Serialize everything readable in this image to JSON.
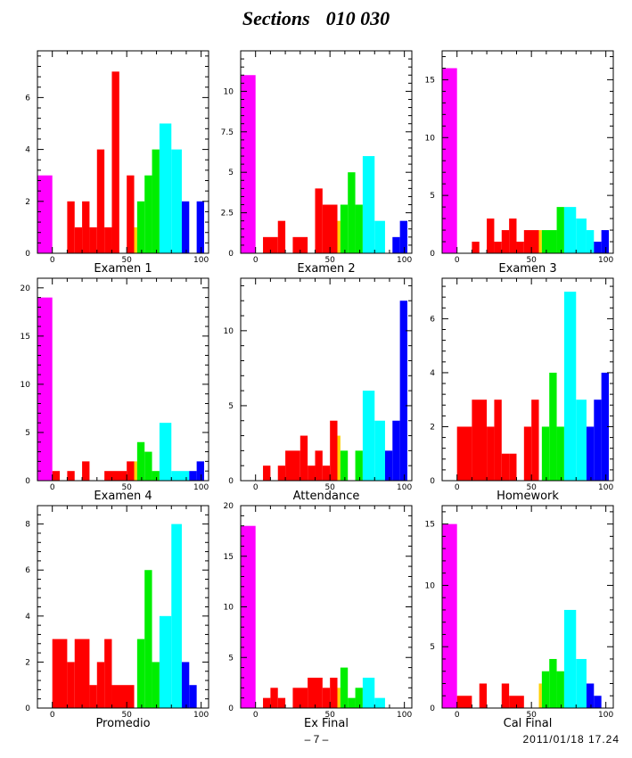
{
  "page": {
    "title_a": "Sections",
    "title_b": "010 030",
    "page_number": "– 7 –",
    "timestamp": "2011/01/18   17.24"
  },
  "colors": {
    "magenta": "#ff00ff",
    "red": "#ff0000",
    "yellow": "#ffd000",
    "green": "#00ee00",
    "cyan": "#00ffff",
    "blue": "#0000ff"
  },
  "chart_data": [
    {
      "type": "bar",
      "xlabel": "Examen 1",
      "xlim": [
        -10,
        105
      ],
      "ylim": [
        0,
        7.8
      ],
      "yticks": [
        0,
        2,
        4,
        6
      ],
      "ytick_labels": [
        "0",
        "2",
        "4",
        "6"
      ],
      "xticks": [
        0,
        50,
        100
      ],
      "xtick_labels": [
        "0",
        "50",
        "100"
      ],
      "bins": [
        {
          "x0": -10,
          "x1": 0,
          "v": 3,
          "c": "magenta"
        },
        {
          "x0": 10,
          "x1": 15,
          "v": 2,
          "c": "red"
        },
        {
          "x0": 15,
          "x1": 20,
          "v": 1,
          "c": "red"
        },
        {
          "x0": 20,
          "x1": 25,
          "v": 2,
          "c": "red"
        },
        {
          "x0": 25,
          "x1": 30,
          "v": 1,
          "c": "red"
        },
        {
          "x0": 30,
          "x1": 35,
          "v": 4,
          "c": "red"
        },
        {
          "x0": 35,
          "x1": 40,
          "v": 1,
          "c": "red"
        },
        {
          "x0": 40,
          "x1": 45,
          "v": 7,
          "c": "red"
        },
        {
          "x0": 50,
          "x1": 55,
          "v": 3,
          "c": "red"
        },
        {
          "x0": 55,
          "x1": 57,
          "v": 1,
          "c": "yellow"
        },
        {
          "x0": 57,
          "x1": 62,
          "v": 2,
          "c": "green"
        },
        {
          "x0": 62,
          "x1": 67,
          "v": 3,
          "c": "green"
        },
        {
          "x0": 67,
          "x1": 72,
          "v": 4,
          "c": "green"
        },
        {
          "x0": 72,
          "x1": 80,
          "v": 5,
          "c": "cyan"
        },
        {
          "x0": 80,
          "x1": 87,
          "v": 4,
          "c": "cyan"
        },
        {
          "x0": 87,
          "x1": 92,
          "v": 2,
          "c": "blue"
        },
        {
          "x0": 97,
          "x1": 102,
          "v": 2,
          "c": "blue"
        }
      ]
    },
    {
      "type": "bar",
      "xlabel": "Examen 2",
      "xlim": [
        -10,
        105
      ],
      "ylim": [
        0,
        12.5
      ],
      "yticks": [
        0,
        2.5,
        5,
        7.5,
        10
      ],
      "ytick_labels": [
        "0",
        "2.5",
        "5",
        "7.5",
        "10"
      ],
      "xticks": [
        0,
        50,
        100
      ],
      "xtick_labels": [
        "0",
        "50",
        "100"
      ],
      "bins": [
        {
          "x0": -10,
          "x1": 0,
          "v": 11,
          "c": "magenta"
        },
        {
          "x0": 5,
          "x1": 15,
          "v": 1,
          "c": "red"
        },
        {
          "x0": 15,
          "x1": 20,
          "v": 2,
          "c": "red"
        },
        {
          "x0": 25,
          "x1": 35,
          "v": 1,
          "c": "red"
        },
        {
          "x0": 40,
          "x1": 45,
          "v": 4,
          "c": "red"
        },
        {
          "x0": 45,
          "x1": 55,
          "v": 3,
          "c": "red"
        },
        {
          "x0": 55,
          "x1": 57,
          "v": 2,
          "c": "yellow"
        },
        {
          "x0": 57,
          "x1": 62,
          "v": 3,
          "c": "green"
        },
        {
          "x0": 62,
          "x1": 67,
          "v": 5,
          "c": "green"
        },
        {
          "x0": 67,
          "x1": 72,
          "v": 3,
          "c": "green"
        },
        {
          "x0": 72,
          "x1": 80,
          "v": 6,
          "c": "cyan"
        },
        {
          "x0": 80,
          "x1": 87,
          "v": 2,
          "c": "cyan"
        },
        {
          "x0": 92,
          "x1": 97,
          "v": 1,
          "c": "blue"
        },
        {
          "x0": 97,
          "x1": 102,
          "v": 2,
          "c": "blue"
        }
      ]
    },
    {
      "type": "bar",
      "xlabel": "Examen 3",
      "xlim": [
        -10,
        105
      ],
      "ylim": [
        0,
        17.5
      ],
      "yticks": [
        0,
        5,
        10,
        15
      ],
      "ytick_labels": [
        "0",
        "5",
        "10",
        "15"
      ],
      "xticks": [
        0,
        50,
        100
      ],
      "xtick_labels": [
        "0",
        "50",
        "100"
      ],
      "bins": [
        {
          "x0": -10,
          "x1": 0,
          "v": 16,
          "c": "magenta"
        },
        {
          "x0": 10,
          "x1": 15,
          "v": 1,
          "c": "red"
        },
        {
          "x0": 20,
          "x1": 25,
          "v": 3,
          "c": "red"
        },
        {
          "x0": 25,
          "x1": 30,
          "v": 1,
          "c": "red"
        },
        {
          "x0": 30,
          "x1": 35,
          "v": 2,
          "c": "red"
        },
        {
          "x0": 35,
          "x1": 40,
          "v": 3,
          "c": "red"
        },
        {
          "x0": 40,
          "x1": 45,
          "v": 1,
          "c": "red"
        },
        {
          "x0": 45,
          "x1": 55,
          "v": 2,
          "c": "red"
        },
        {
          "x0": 55,
          "x1": 57,
          "v": 2,
          "c": "yellow"
        },
        {
          "x0": 57,
          "x1": 67,
          "v": 2,
          "c": "green"
        },
        {
          "x0": 67,
          "x1": 72,
          "v": 4,
          "c": "green"
        },
        {
          "x0": 72,
          "x1": 80,
          "v": 4,
          "c": "cyan"
        },
        {
          "x0": 80,
          "x1": 87,
          "v": 3,
          "c": "cyan"
        },
        {
          "x0": 87,
          "x1": 92,
          "v": 2,
          "c": "cyan"
        },
        {
          "x0": 92,
          "x1": 97,
          "v": 1,
          "c": "blue"
        },
        {
          "x0": 97,
          "x1": 102,
          "v": 2,
          "c": "blue"
        }
      ]
    },
    {
      "type": "bar",
      "xlabel": "Examen 4",
      "xlim": [
        -10,
        105
      ],
      "ylim": [
        0,
        21
      ],
      "yticks": [
        0,
        5,
        10,
        15,
        20
      ],
      "ytick_labels": [
        "0",
        "5",
        "10",
        "15",
        "20"
      ],
      "xticks": [
        0,
        50,
        100
      ],
      "xtick_labels": [
        "0",
        "50",
        "100"
      ],
      "bins": [
        {
          "x0": -10,
          "x1": 0,
          "v": 19,
          "c": "magenta"
        },
        {
          "x0": 0,
          "x1": 5,
          "v": 1,
          "c": "red"
        },
        {
          "x0": 10,
          "x1": 15,
          "v": 1,
          "c": "red"
        },
        {
          "x0": 20,
          "x1": 25,
          "v": 2,
          "c": "red"
        },
        {
          "x0": 25,
          "x1": 30,
          "v": 0,
          "c": "red"
        },
        {
          "x0": 35,
          "x1": 50,
          "v": 1,
          "c": "red"
        },
        {
          "x0": 50,
          "x1": 55,
          "v": 2,
          "c": "red"
        },
        {
          "x0": 55,
          "x1": 57,
          "v": 2,
          "c": "yellow"
        },
        {
          "x0": 57,
          "x1": 62,
          "v": 4,
          "c": "green"
        },
        {
          "x0": 62,
          "x1": 67,
          "v": 3,
          "c": "green"
        },
        {
          "x0": 67,
          "x1": 72,
          "v": 1,
          "c": "green"
        },
        {
          "x0": 72,
          "x1": 80,
          "v": 6,
          "c": "cyan"
        },
        {
          "x0": 80,
          "x1": 92,
          "v": 1,
          "c": "cyan"
        },
        {
          "x0": 92,
          "x1": 97,
          "v": 1,
          "c": "blue"
        },
        {
          "x0": 97,
          "x1": 102,
          "v": 2,
          "c": "blue"
        }
      ]
    },
    {
      "type": "bar",
      "xlabel": "Attendance",
      "xlim": [
        -10,
        105
      ],
      "ylim": [
        0,
        13.5
      ],
      "yticks": [
        0,
        5,
        10
      ],
      "ytick_labels": [
        "0",
        "5",
        "10"
      ],
      "xticks": [
        0,
        50,
        100
      ],
      "xtick_labels": [
        "0",
        "50",
        "100"
      ],
      "bins": [
        {
          "x0": 5,
          "x1": 10,
          "v": 1,
          "c": "red"
        },
        {
          "x0": 15,
          "x1": 20,
          "v": 1,
          "c": "red"
        },
        {
          "x0": 20,
          "x1": 30,
          "v": 2,
          "c": "red"
        },
        {
          "x0": 30,
          "x1": 35,
          "v": 3,
          "c": "red"
        },
        {
          "x0": 35,
          "x1": 40,
          "v": 1,
          "c": "red"
        },
        {
          "x0": 40,
          "x1": 45,
          "v": 2,
          "c": "red"
        },
        {
          "x0": 45,
          "x1": 50,
          "v": 1,
          "c": "red"
        },
        {
          "x0": 50,
          "x1": 55,
          "v": 4,
          "c": "red"
        },
        {
          "x0": 55,
          "x1": 57,
          "v": 3,
          "c": "yellow"
        },
        {
          "x0": 57,
          "x1": 62,
          "v": 2,
          "c": "green"
        },
        {
          "x0": 67,
          "x1": 72,
          "v": 2,
          "c": "green"
        },
        {
          "x0": 72,
          "x1": 80,
          "v": 6,
          "c": "cyan"
        },
        {
          "x0": 80,
          "x1": 87,
          "v": 4,
          "c": "cyan"
        },
        {
          "x0": 87,
          "x1": 92,
          "v": 2,
          "c": "blue"
        },
        {
          "x0": 92,
          "x1": 97,
          "v": 4,
          "c": "blue"
        },
        {
          "x0": 97,
          "x1": 102,
          "v": 12,
          "c": "blue"
        }
      ]
    },
    {
      "type": "bar",
      "xlabel": "Homework",
      "xlim": [
        -10,
        105
      ],
      "ylim": [
        0,
        7.5
      ],
      "yticks": [
        0,
        2,
        4,
        6
      ],
      "ytick_labels": [
        "0",
        "2",
        "4",
        "6"
      ],
      "xticks": [
        0,
        50,
        100
      ],
      "xtick_labels": [
        "0",
        "50",
        "100"
      ],
      "bins": [
        {
          "x0": 0,
          "x1": 10,
          "v": 2,
          "c": "red"
        },
        {
          "x0": 10,
          "x1": 20,
          "v": 3,
          "c": "red"
        },
        {
          "x0": 20,
          "x1": 25,
          "v": 2,
          "c": "red"
        },
        {
          "x0": 25,
          "x1": 30,
          "v": 3,
          "c": "red"
        },
        {
          "x0": 30,
          "x1": 35,
          "v": 1,
          "c": "red"
        },
        {
          "x0": 35,
          "x1": 40,
          "v": 1,
          "c": "red"
        },
        {
          "x0": 45,
          "x1": 50,
          "v": 2,
          "c": "red"
        },
        {
          "x0": 50,
          "x1": 55,
          "v": 3,
          "c": "red"
        },
        {
          "x0": 57,
          "x1": 62,
          "v": 2,
          "c": "green"
        },
        {
          "x0": 62,
          "x1": 67,
          "v": 4,
          "c": "green"
        },
        {
          "x0": 67,
          "x1": 72,
          "v": 2,
          "c": "green"
        },
        {
          "x0": 72,
          "x1": 80,
          "v": 7,
          "c": "cyan"
        },
        {
          "x0": 80,
          "x1": 87,
          "v": 3,
          "c": "cyan"
        },
        {
          "x0": 87,
          "x1": 92,
          "v": 2,
          "c": "blue"
        },
        {
          "x0": 92,
          "x1": 97,
          "v": 3,
          "c": "blue"
        },
        {
          "x0": 97,
          "x1": 102,
          "v": 4,
          "c": "blue"
        }
      ]
    },
    {
      "type": "bar",
      "xlabel": "Promedio",
      "xlim": [
        -10,
        105
      ],
      "ylim": [
        0,
        8.8
      ],
      "yticks": [
        0,
        2,
        4,
        6,
        8
      ],
      "ytick_labels": [
        "0",
        "2",
        "4",
        "6",
        "8"
      ],
      "xticks": [
        0,
        50,
        100
      ],
      "xtick_labels": [
        "0",
        "50",
        "100"
      ],
      "bins": [
        {
          "x0": 0,
          "x1": 10,
          "v": 3,
          "c": "red"
        },
        {
          "x0": 10,
          "x1": 15,
          "v": 2,
          "c": "red"
        },
        {
          "x0": 15,
          "x1": 25,
          "v": 3,
          "c": "red"
        },
        {
          "x0": 25,
          "x1": 30,
          "v": 1,
          "c": "red"
        },
        {
          "x0": 30,
          "x1": 35,
          "v": 2,
          "c": "red"
        },
        {
          "x0": 35,
          "x1": 40,
          "v": 3,
          "c": "red"
        },
        {
          "x0": 40,
          "x1": 55,
          "v": 1,
          "c": "red"
        },
        {
          "x0": 57,
          "x1": 62,
          "v": 3,
          "c": "green"
        },
        {
          "x0": 62,
          "x1": 67,
          "v": 6,
          "c": "green"
        },
        {
          "x0": 67,
          "x1": 72,
          "v": 2,
          "c": "green"
        },
        {
          "x0": 72,
          "x1": 80,
          "v": 4,
          "c": "cyan"
        },
        {
          "x0": 80,
          "x1": 87,
          "v": 8,
          "c": "cyan"
        },
        {
          "x0": 87,
          "x1": 92,
          "v": 2,
          "c": "blue"
        },
        {
          "x0": 92,
          "x1": 97,
          "v": 1,
          "c": "blue"
        }
      ]
    },
    {
      "type": "bar",
      "xlabel": "Ex Final",
      "xlim": [
        -10,
        105
      ],
      "ylim": [
        0,
        20
      ],
      "yticks": [
        0,
        5,
        10,
        15,
        20
      ],
      "ytick_labels": [
        "0",
        "5",
        "10",
        "15",
        "20"
      ],
      "xticks": [
        0,
        50,
        100
      ],
      "xtick_labels": [
        "0",
        "50",
        "100"
      ],
      "bins": [
        {
          "x0": -10,
          "x1": 0,
          "v": 18,
          "c": "magenta"
        },
        {
          "x0": 5,
          "x1": 10,
          "v": 1,
          "c": "red"
        },
        {
          "x0": 10,
          "x1": 15,
          "v": 2,
          "c": "red"
        },
        {
          "x0": 15,
          "x1": 20,
          "v": 1,
          "c": "red"
        },
        {
          "x0": 25,
          "x1": 35,
          "v": 2,
          "c": "red"
        },
        {
          "x0": 35,
          "x1": 45,
          "v": 3,
          "c": "red"
        },
        {
          "x0": 45,
          "x1": 50,
          "v": 2,
          "c": "red"
        },
        {
          "x0": 50,
          "x1": 55,
          "v": 3,
          "c": "red"
        },
        {
          "x0": 55,
          "x1": 57,
          "v": 2,
          "c": "yellow"
        },
        {
          "x0": 57,
          "x1": 62,
          "v": 4,
          "c": "green"
        },
        {
          "x0": 62,
          "x1": 67,
          "v": 1,
          "c": "green"
        },
        {
          "x0": 67,
          "x1": 72,
          "v": 2,
          "c": "green"
        },
        {
          "x0": 72,
          "x1": 80,
          "v": 3,
          "c": "cyan"
        },
        {
          "x0": 80,
          "x1": 87,
          "v": 1,
          "c": "cyan"
        }
      ]
    },
    {
      "type": "bar",
      "xlabel": "Cal Final",
      "xlim": [
        -10,
        105
      ],
      "ylim": [
        0,
        16.5
      ],
      "yticks": [
        0,
        5,
        10,
        15
      ],
      "ytick_labels": [
        "0",
        "5",
        "10",
        "15"
      ],
      "xticks": [
        0,
        50,
        100
      ],
      "xtick_labels": [
        "0",
        "50",
        "100"
      ],
      "bins": [
        {
          "x0": -10,
          "x1": 0,
          "v": 15,
          "c": "magenta"
        },
        {
          "x0": 0,
          "x1": 10,
          "v": 1,
          "c": "red"
        },
        {
          "x0": 15,
          "x1": 20,
          "v": 2,
          "c": "red"
        },
        {
          "x0": 30,
          "x1": 35,
          "v": 2,
          "c": "red"
        },
        {
          "x0": 35,
          "x1": 45,
          "v": 1,
          "c": "red"
        },
        {
          "x0": 55,
          "x1": 57,
          "v": 2,
          "c": "yellow"
        },
        {
          "x0": 57,
          "x1": 62,
          "v": 3,
          "c": "green"
        },
        {
          "x0": 62,
          "x1": 67,
          "v": 4,
          "c": "green"
        },
        {
          "x0": 67,
          "x1": 72,
          "v": 3,
          "c": "green"
        },
        {
          "x0": 72,
          "x1": 80,
          "v": 8,
          "c": "cyan"
        },
        {
          "x0": 80,
          "x1": 87,
          "v": 4,
          "c": "cyan"
        },
        {
          "x0": 87,
          "x1": 92,
          "v": 2,
          "c": "blue"
        },
        {
          "x0": 92,
          "x1": 97,
          "v": 1,
          "c": "blue"
        }
      ]
    }
  ]
}
